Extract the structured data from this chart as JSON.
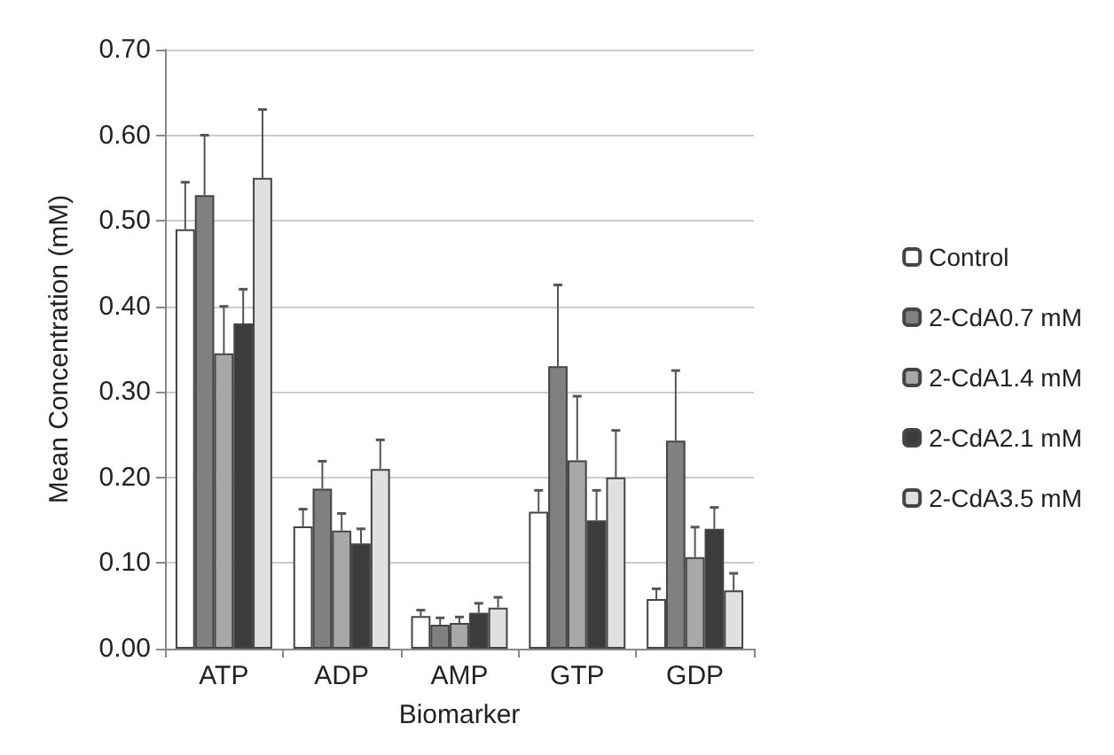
{
  "chart_data": {
    "type": "bar",
    "xlabel": "Biomarker",
    "ylabel": "Mean Concentration (mM)",
    "categories": [
      "ATP",
      "ADP",
      "AMP",
      "GTP",
      "GDP"
    ],
    "series": [
      {
        "name": "Control",
        "color": "#ffffff",
        "values": [
          0.49,
          0.143,
          0.038,
          0.16,
          0.058
        ],
        "errors": [
          [
            0.49,
            0.545
          ],
          [
            0.143,
            0.163
          ],
          [
            0.038,
            0.045
          ],
          [
            0.16,
            0.185
          ],
          [
            0.058,
            0.07
          ]
        ]
      },
      {
        "name": "2-CdA0.7 mM",
        "color": "#808080",
        "values": [
          0.53,
          0.187,
          0.028,
          0.33,
          0.243
        ],
        "errors": [
          [
            0.53,
            0.6
          ],
          [
            0.187,
            0.219
          ],
          [
            0.028,
            0.036
          ],
          [
            0.33,
            0.425
          ],
          [
            0.243,
            0.325
          ]
        ]
      },
      {
        "name": "2-CdA1.4 mM",
        "color": "#a8a8a8",
        "values": [
          0.345,
          0.138,
          0.03,
          0.22,
          0.107
        ],
        "errors": [
          [
            0.345,
            0.4
          ],
          [
            0.138,
            0.158
          ],
          [
            0.03,
            0.037
          ],
          [
            0.22,
            0.295
          ],
          [
            0.107,
            0.142
          ]
        ]
      },
      {
        "name": "2-CdA2.1 mM",
        "color": "#3c3c3c",
        "values": [
          0.38,
          0.123,
          0.042,
          0.15,
          0.14
        ],
        "errors": [
          [
            0.38,
            0.42
          ],
          [
            0.123,
            0.14
          ],
          [
            0.042,
            0.053
          ],
          [
            0.15,
            0.185
          ],
          [
            0.14,
            0.165
          ]
        ]
      },
      {
        "name": "2-CdA3.5 mM",
        "color": "#e0e0e0",
        "values": [
          0.55,
          0.21,
          0.048,
          0.2,
          0.068
        ],
        "errors": [
          [
            0.55,
            0.63
          ],
          [
            0.21,
            0.244
          ],
          [
            0.048,
            0.06
          ],
          [
            0.2,
            0.255
          ],
          [
            0.068,
            0.088
          ]
        ]
      }
    ],
    "ylim": [
      0,
      0.7
    ],
    "yticks": [
      {
        "value": 0,
        "label": "0.00"
      },
      {
        "value": 0.1,
        "label": "0.10"
      },
      {
        "value": 0.2,
        "label": "0.20"
      },
      {
        "value": 0.3,
        "label": "0.30"
      },
      {
        "value": 0.4,
        "label": "0.40"
      },
      {
        "value": 0.5,
        "label": "0.50"
      },
      {
        "value": 0.6,
        "label": "0.60"
      },
      {
        "value": 0.7,
        "label": "0.70"
      }
    ],
    "grid": "y",
    "legend": "right"
  }
}
